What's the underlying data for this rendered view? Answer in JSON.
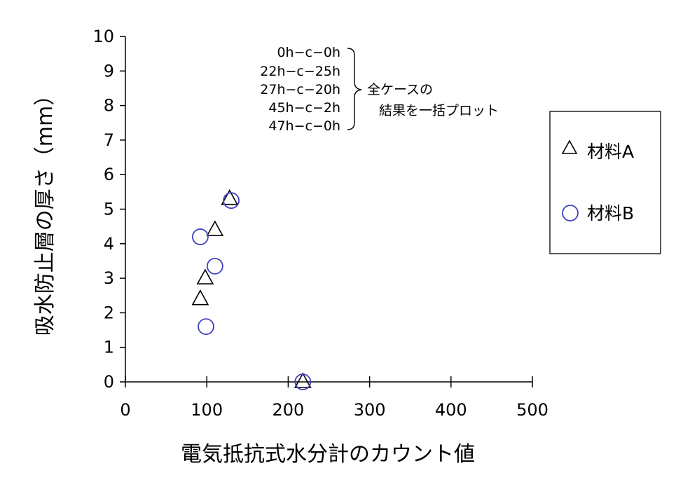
{
  "chart_data": {
    "type": "scatter",
    "xlabel": "電気抵抗式水分計のカウント値",
    "ylabel": "吸水防止層の厚さ（mm）",
    "xlim": [
      0,
      500
    ],
    "ylim": [
      0,
      10
    ],
    "x_ticks": [
      "0",
      "100",
      "200",
      "300",
      "400",
      "500"
    ],
    "y_ticks": [
      "0",
      "1",
      "2",
      "3",
      "4",
      "5",
      "6",
      "7",
      "8",
      "9",
      "10"
    ],
    "grid": false,
    "legend_position": "right",
    "series": [
      {
        "name": "材料A",
        "marker": "triangle",
        "color": "#000000",
        "points": [
          {
            "x": 92,
            "y": 2.4
          },
          {
            "x": 98,
            "y": 3.0
          },
          {
            "x": 110,
            "y": 4.4
          },
          {
            "x": 128,
            "y": 5.3
          },
          {
            "x": 218,
            "y": 0.0
          }
        ]
      },
      {
        "name": "材料B",
        "marker": "circle",
        "color": "#4040c0",
        "points": [
          {
            "x": 92,
            "y": 4.2
          },
          {
            "x": 99,
            "y": 1.6
          },
          {
            "x": 110,
            "y": 3.35
          },
          {
            "x": 130,
            "y": 5.25
          },
          {
            "x": 218,
            "y": 0.0
          }
        ]
      }
    ],
    "annotation": {
      "cases": [
        "0h−c−0h",
        "22h−c−25h",
        "27h−c−20h",
        "45h−c−2h",
        "47h−c−0h"
      ],
      "note_line1": "全ケースの",
      "note_line2": "結果を一括プロット"
    }
  }
}
